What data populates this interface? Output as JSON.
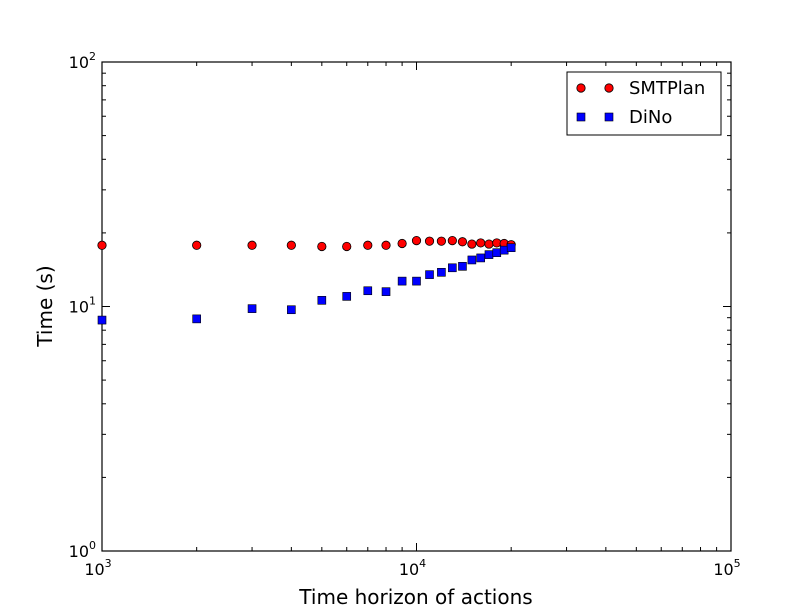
{
  "chart_data": {
    "type": "scatter",
    "xlabel": "Time horizon of actions",
    "ylabel": "Time (s)",
    "xscale": "log",
    "yscale": "log",
    "xlim": [
      1000,
      100000
    ],
    "ylim": [
      1,
      100
    ],
    "grid": false,
    "legend_position": "top-right",
    "x_ticks": [
      {
        "value": 1000,
        "base": "10",
        "exp": "3"
      },
      {
        "value": 10000,
        "base": "10",
        "exp": "4"
      },
      {
        "value": 100000,
        "base": "10",
        "exp": "5"
      }
    ],
    "y_ticks": [
      {
        "value": 1,
        "base": "10",
        "exp": "0"
      },
      {
        "value": 10,
        "base": "10",
        "exp": "1"
      },
      {
        "value": 100,
        "base": "10",
        "exp": "2"
      }
    ],
    "series": [
      {
        "name": "SMTPlan",
        "marker": "circle",
        "color": "#ff0000",
        "x": [
          1000,
          2000,
          3000,
          4000,
          5000,
          6000,
          7000,
          8000,
          9000,
          10000,
          11000,
          12000,
          13000,
          14000,
          15000,
          16000,
          17000,
          18000,
          19000,
          20000
        ],
        "y": [
          17.8,
          17.8,
          17.8,
          17.8,
          17.6,
          17.6,
          17.8,
          17.8,
          18.1,
          18.6,
          18.5,
          18.5,
          18.6,
          18.4,
          18.0,
          18.2,
          18.0,
          18.2,
          18.1,
          17.9
        ]
      },
      {
        "name": "DiNo",
        "marker": "square",
        "color": "#0000ff",
        "x": [
          1000,
          2000,
          3000,
          4000,
          5000,
          6000,
          7000,
          8000,
          9000,
          10000,
          11000,
          12000,
          13000,
          14000,
          15000,
          16000,
          17000,
          18000,
          19000,
          20000
        ],
        "y": [
          8.8,
          8.9,
          9.8,
          9.7,
          10.6,
          11.0,
          11.6,
          11.5,
          12.7,
          12.7,
          13.5,
          13.8,
          14.4,
          14.6,
          15.5,
          15.8,
          16.3,
          16.6,
          17.0,
          17.4
        ]
      }
    ]
  }
}
